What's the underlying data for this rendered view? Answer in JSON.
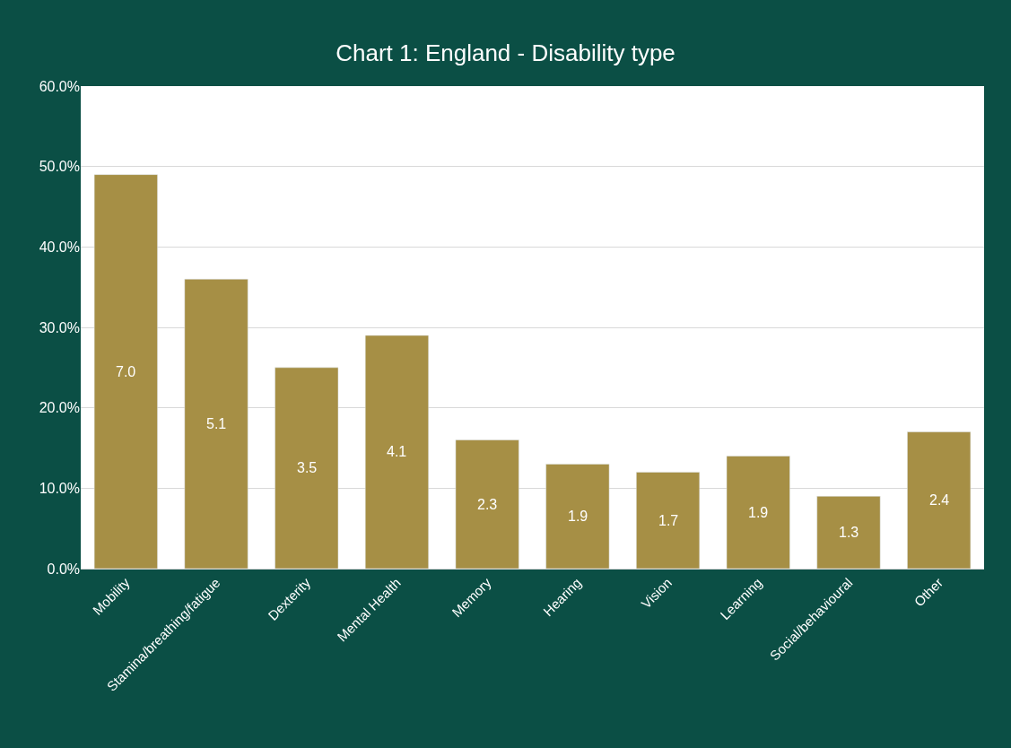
{
  "chart_data": {
    "type": "bar",
    "title": "Chart 1: England - Disability type",
    "categories": [
      "Mobility",
      "Stamina/breathing/fatigue",
      "Dexterity",
      "Mental Health",
      "Memory",
      "Hearing",
      "Vision",
      "Learning",
      "Social/behavioural",
      "Other"
    ],
    "values": [
      49,
      36,
      25,
      29,
      16,
      13,
      12,
      14,
      9,
      17
    ],
    "annotations": [
      "7.0",
      "5.1",
      "3.5",
      "4.1",
      "2.3",
      "1.9",
      "1.7",
      "1.9",
      "1.3",
      "2.4"
    ],
    "color": "#a68f45",
    "ylim": [
      0,
      60
    ],
    "yticks": [
      {
        "value": 0,
        "label": "0.0%"
      },
      {
        "value": 10,
        "label": "10.0%"
      },
      {
        "value": 20,
        "label": "20.0%"
      },
      {
        "value": 30,
        "label": "30.0%"
      },
      {
        "value": 40,
        "label": "40.0%"
      },
      {
        "value": 50,
        "label": "50.0%"
      },
      {
        "value": 60,
        "label": "60.0%"
      }
    ],
    "grid": "y",
    "legend": false
  }
}
